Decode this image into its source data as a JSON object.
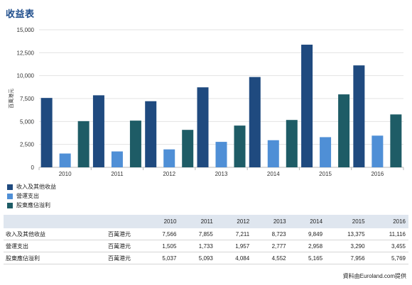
{
  "title": "收益表",
  "chart_data": {
    "type": "bar",
    "ylabel": "百萬港元",
    "ylim": [
      0,
      15000
    ],
    "yticks": [
      "0",
      "2,500",
      "5,000",
      "7,500",
      "10,000",
      "12,500",
      "15,000"
    ],
    "yticks_values": [
      0,
      2500,
      5000,
      7500,
      10000,
      12500,
      15000
    ],
    "categories": [
      "2010",
      "2011",
      "2012",
      "2013",
      "2014",
      "2015",
      "2016"
    ],
    "grid": true,
    "legend_position": "bottom-left",
    "series": [
      {
        "name": "收入及其他收益",
        "color": "#1f4a7f",
        "values": [
          7566,
          7855,
          7211,
          8723,
          9849,
          13375,
          11116
        ]
      },
      {
        "name": "營運支出",
        "color": "#4f8fd6",
        "values": [
          1505,
          1733,
          1957,
          2777,
          2958,
          3290,
          3455
        ]
      },
      {
        "name": "股東應佔溢利",
        "color": "#1e5c66",
        "values": [
          5037,
          5093,
          4084,
          4552,
          5165,
          7956,
          5769
        ]
      }
    ]
  },
  "table": {
    "headers": [
      "",
      "",
      "2010",
      "2011",
      "2012",
      "2013",
      "2014",
      "2015",
      "2016"
    ],
    "rows": [
      {
        "label": "收入及其他收益",
        "unit": "百萬港元",
        "values": [
          "7,566",
          "7,855",
          "7,211",
          "8,723",
          "9,849",
          "13,375",
          "11,116"
        ]
      },
      {
        "label": "營運支出",
        "unit": "百萬港元",
        "values": [
          "1,505",
          "1,733",
          "1,957",
          "2,777",
          "2,958",
          "3,290",
          "3,455"
        ]
      },
      {
        "label": "股東應佔溢利",
        "unit": "百萬港元",
        "values": [
          "5,037",
          "5,093",
          "4,084",
          "4,552",
          "5,165",
          "7,956",
          "5,769"
        ]
      }
    ]
  },
  "source": "資料由Euroland.com提供"
}
